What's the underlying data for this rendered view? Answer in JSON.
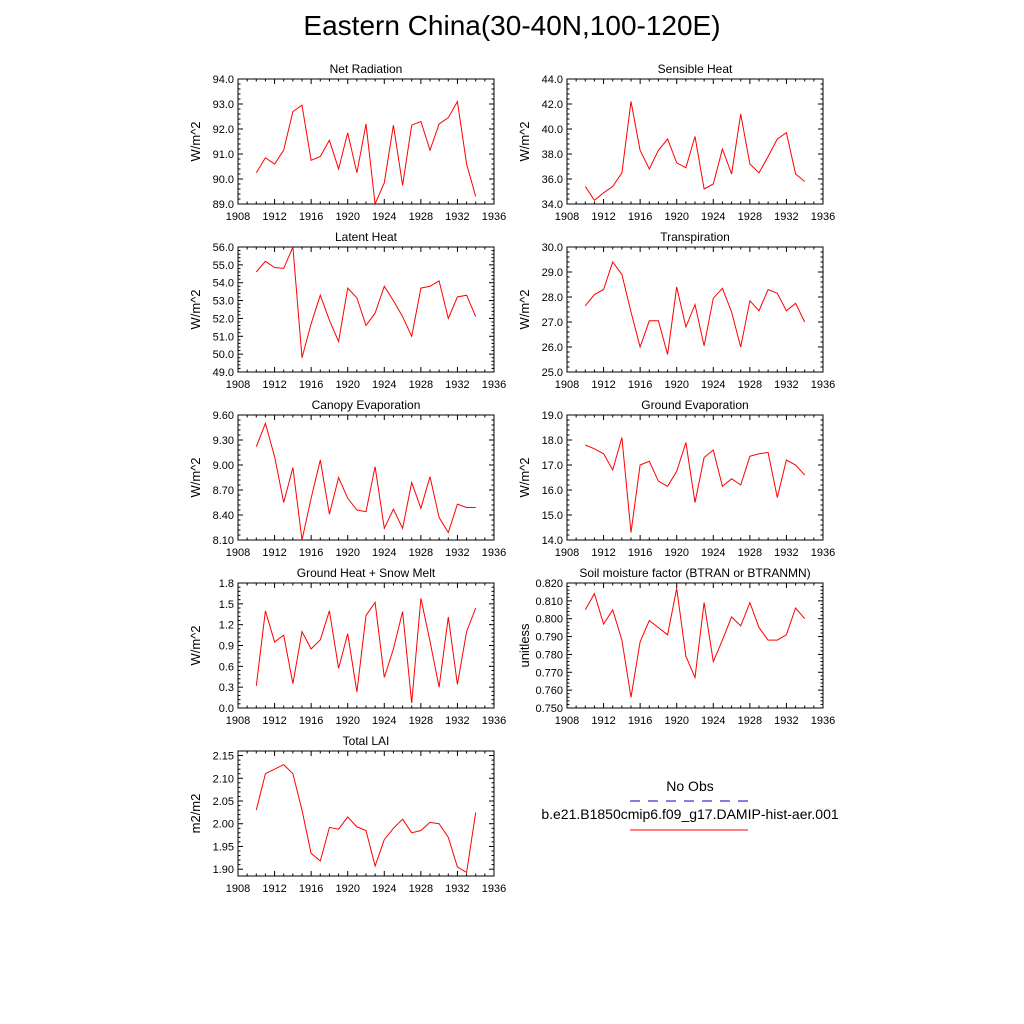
{
  "title": "Eastern China(30-40N,100-120E)",
  "xticks": [
    1908,
    1912,
    1916,
    1920,
    1924,
    1928,
    1932,
    1936
  ],
  "xlim": [
    1908,
    1936
  ],
  "colors": {
    "model": "#ff0000",
    "obs": "#0000cc"
  },
  "legend": {
    "obs_label": "No Obs",
    "model_label": "b.e21.B1850cmip6.f09_g17.DAMIP-hist-aer.001"
  },
  "chart_data": [
    {
      "type": "line",
      "title": "Net Radiation",
      "ylabel": "W/m^2",
      "ylim": [
        89.0,
        94.0
      ],
      "yticks": [
        "89.0",
        "90.0",
        "91.0",
        "92.0",
        "93.0",
        "94.0"
      ],
      "series": [
        {
          "name": "b.e21.B1850cmip6.f09_g17.DAMIP-hist-aer.001",
          "x": [
            1910,
            1911,
            1912,
            1913,
            1914,
            1915,
            1916,
            1917,
            1918,
            1919,
            1920,
            1921,
            1922,
            1923,
            1924,
            1925,
            1926,
            1927,
            1928,
            1929,
            1930,
            1931,
            1932,
            1933,
            1934
          ],
          "y": [
            90.25,
            90.85,
            90.6,
            91.15,
            92.7,
            92.95,
            90.75,
            90.9,
            91.55,
            90.4,
            91.85,
            90.25,
            92.2,
            89.0,
            89.85,
            92.15,
            89.75,
            92.15,
            92.3,
            91.15,
            92.2,
            92.45,
            93.1,
            90.6,
            89.3
          ]
        }
      ]
    },
    {
      "type": "line",
      "title": "Sensible Heat",
      "ylabel": "W/m^2",
      "ylim": [
        34.0,
        44.0
      ],
      "yticks": [
        "34.0",
        "36.0",
        "38.0",
        "40.0",
        "42.0",
        "44.0"
      ],
      "series": [
        {
          "name": "b.e21.B1850cmip6.f09_g17.DAMIP-hist-aer.001",
          "x": [
            1910,
            1911,
            1912,
            1913,
            1914,
            1915,
            1916,
            1917,
            1918,
            1919,
            1920,
            1921,
            1922,
            1923,
            1924,
            1925,
            1926,
            1927,
            1928,
            1929,
            1930,
            1931,
            1932,
            1933,
            1934
          ],
          "y": [
            35.4,
            34.3,
            34.9,
            35.4,
            36.5,
            42.2,
            38.3,
            36.8,
            38.3,
            39.2,
            37.3,
            36.9,
            39.4,
            35.2,
            35.6,
            38.4,
            36.4,
            41.2,
            37.2,
            36.5,
            37.8,
            39.2,
            39.7,
            36.4,
            35.8
          ]
        }
      ]
    },
    {
      "type": "line",
      "title": "Latent Heat",
      "ylabel": "W/m^2",
      "ylim": [
        49.0,
        56.0
      ],
      "yticks": [
        "49.0",
        "50.0",
        "51.0",
        "52.0",
        "53.0",
        "54.0",
        "55.0",
        "56.0"
      ],
      "series": [
        {
          "name": "b.e21.B1850cmip6.f09_g17.DAMIP-hist-aer.001",
          "x": [
            1910,
            1911,
            1912,
            1913,
            1914,
            1915,
            1916,
            1917,
            1918,
            1919,
            1920,
            1921,
            1922,
            1923,
            1924,
            1925,
            1926,
            1927,
            1928,
            1929,
            1930,
            1931,
            1932,
            1933,
            1934
          ],
          "y": [
            54.6,
            55.2,
            54.85,
            54.8,
            56.0,
            49.8,
            51.7,
            53.3,
            51.9,
            50.7,
            53.7,
            53.15,
            51.6,
            52.3,
            53.8,
            53.0,
            52.1,
            51.0,
            53.7,
            53.8,
            54.1,
            52.0,
            53.2,
            53.3,
            52.1
          ]
        }
      ]
    },
    {
      "type": "line",
      "title": "Transpiration",
      "ylabel": "W/m^2",
      "ylim": [
        25.0,
        30.0
      ],
      "yticks": [
        "25.0",
        "26.0",
        "27.0",
        "28.0",
        "29.0",
        "30.0"
      ],
      "series": [
        {
          "name": "b.e21.B1850cmip6.f09_g17.DAMIP-hist-aer.001",
          "x": [
            1910,
            1911,
            1912,
            1913,
            1914,
            1915,
            1916,
            1917,
            1918,
            1919,
            1920,
            1921,
            1922,
            1923,
            1924,
            1925,
            1926,
            1927,
            1928,
            1929,
            1930,
            1931,
            1932,
            1933,
            1934
          ],
          "y": [
            27.65,
            28.1,
            28.3,
            29.4,
            28.9,
            27.4,
            26.0,
            27.05,
            27.05,
            25.7,
            28.4,
            26.8,
            27.7,
            26.05,
            27.95,
            28.35,
            27.4,
            26.0,
            27.85,
            27.45,
            28.3,
            28.15,
            27.45,
            27.75,
            27.0
          ]
        }
      ]
    },
    {
      "type": "line",
      "title": "Canopy Evaporation",
      "ylabel": "W/m^2",
      "ylim": [
        8.1,
        9.6
      ],
      "yticks": [
        "8.10",
        "8.40",
        "8.70",
        "9.00",
        "9.30",
        "9.60"
      ],
      "series": [
        {
          "name": "b.e21.B1850cmip6.f09_g17.DAMIP-hist-aer.001",
          "x": [
            1910,
            1911,
            1912,
            1913,
            1914,
            1915,
            1916,
            1917,
            1918,
            1919,
            1920,
            1921,
            1922,
            1923,
            1924,
            1925,
            1926,
            1927,
            1928,
            1929,
            1930,
            1931,
            1932,
            1933,
            1934
          ],
          "y": [
            9.22,
            9.5,
            9.1,
            8.55,
            8.97,
            8.1,
            8.6,
            9.06,
            8.41,
            8.85,
            8.6,
            8.46,
            8.44,
            8.98,
            8.24,
            8.47,
            8.24,
            8.79,
            8.48,
            8.86,
            8.37,
            8.19,
            8.53,
            8.49,
            8.49
          ]
        }
      ]
    },
    {
      "type": "line",
      "title": "Ground Evaporation",
      "ylabel": "W/m^2",
      "ylim": [
        14.0,
        19.0
      ],
      "yticks": [
        "14.0",
        "15.0",
        "16.0",
        "17.0",
        "18.0",
        "19.0"
      ],
      "series": [
        {
          "name": "b.e21.B1850cmip6.f09_g17.DAMIP-hist-aer.001",
          "x": [
            1910,
            1911,
            1912,
            1913,
            1914,
            1915,
            1916,
            1917,
            1918,
            1919,
            1920,
            1921,
            1922,
            1923,
            1924,
            1925,
            1926,
            1927,
            1928,
            1929,
            1930,
            1931,
            1932,
            1933,
            1934
          ],
          "y": [
            17.8,
            17.65,
            17.45,
            16.8,
            18.1,
            14.3,
            17.0,
            17.15,
            16.35,
            16.15,
            16.75,
            17.9,
            15.5,
            17.3,
            17.6,
            16.15,
            16.45,
            16.2,
            17.35,
            17.45,
            17.5,
            15.7,
            17.2,
            17.0,
            16.6
          ]
        }
      ]
    },
    {
      "type": "line",
      "title": "Ground Heat + Snow Melt",
      "ylabel": "W/m^2",
      "ylim": [
        0.0,
        1.8
      ],
      "yticks": [
        "0.0",
        "0.3",
        "0.6",
        "0.9",
        "1.2",
        "1.5",
        "1.8"
      ],
      "series": [
        {
          "name": "b.e21.B1850cmip6.f09_g17.DAMIP-hist-aer.001",
          "x": [
            1910,
            1911,
            1912,
            1913,
            1914,
            1915,
            1916,
            1917,
            1918,
            1919,
            1920,
            1921,
            1922,
            1923,
            1924,
            1925,
            1926,
            1927,
            1928,
            1929,
            1930,
            1931,
            1932,
            1933,
            1934
          ],
          "y": [
            0.32,
            1.4,
            0.95,
            1.05,
            0.35,
            1.1,
            0.85,
            0.98,
            1.4,
            0.57,
            1.07,
            0.23,
            1.33,
            1.52,
            0.44,
            0.85,
            1.39,
            0.07,
            1.58,
            0.96,
            0.3,
            1.31,
            0.34,
            1.1,
            1.44
          ]
        }
      ]
    },
    {
      "type": "line",
      "title": "Soil moisture factor (BTRAN or BTRANMN)",
      "ylabel": "unitless",
      "ylim": [
        0.75,
        0.82
      ],
      "yticks": [
        "0.750",
        "0.760",
        "0.770",
        "0.780",
        "0.790",
        "0.800",
        "0.810",
        "0.820"
      ],
      "series": [
        {
          "name": "b.e21.B1850cmip6.f09_g17.DAMIP-hist-aer.001",
          "x": [
            1910,
            1911,
            1912,
            1913,
            1914,
            1915,
            1916,
            1917,
            1918,
            1919,
            1920,
            1921,
            1922,
            1923,
            1924,
            1925,
            1926,
            1927,
            1928,
            1929,
            1930,
            1931,
            1932,
            1933,
            1934
          ],
          "y": [
            0.805,
            0.814,
            0.797,
            0.805,
            0.788,
            0.756,
            0.787,
            0.799,
            0.795,
            0.791,
            0.817,
            0.779,
            0.767,
            0.809,
            0.776,
            0.788,
            0.801,
            0.796,
            0.809,
            0.795,
            0.788,
            0.788,
            0.791,
            0.806,
            0.8
          ]
        }
      ]
    },
    {
      "type": "line",
      "title": "Total LAI",
      "ylabel": "m2/m2",
      "ylim": [
        1.885,
        2.16
      ],
      "yticks": [
        "1.90",
        "1.95",
        "2.00",
        "2.05",
        "2.10",
        "2.15"
      ],
      "series": [
        {
          "name": "b.e21.B1850cmip6.f09_g17.DAMIP-hist-aer.001",
          "x": [
            1910,
            1911,
            1912,
            1913,
            1914,
            1915,
            1916,
            1917,
            1918,
            1919,
            1920,
            1921,
            1922,
            1923,
            1924,
            1925,
            1926,
            1927,
            1928,
            1929,
            1930,
            1931,
            1932,
            1933,
            1934
          ],
          "y": [
            2.03,
            2.11,
            2.12,
            2.13,
            2.11,
            2.03,
            1.935,
            1.918,
            1.992,
            1.988,
            2.015,
            1.993,
            1.985,
            1.907,
            1.965,
            1.99,
            2.01,
            1.98,
            1.985,
            2.003,
            2.0,
            1.97,
            1.905,
            1.893,
            2.025
          ]
        }
      ]
    }
  ]
}
